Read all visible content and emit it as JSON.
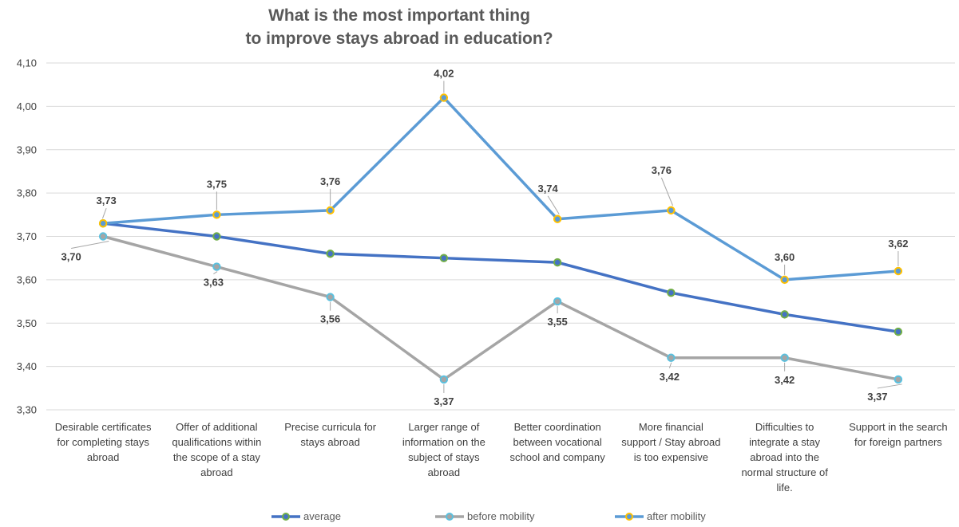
{
  "chart_data": {
    "type": "line",
    "title_lines": [
      "What is the most important thing",
      "to improve stays abroad in education?"
    ],
    "ylim": [
      3.3,
      4.1
    ],
    "yticks": [
      "3,30",
      "3,40",
      "3,50",
      "3,60",
      "3,70",
      "3,80",
      "3,90",
      "4,00",
      "4,10"
    ],
    "ytick_values": [
      3.3,
      3.4,
      3.5,
      3.6,
      3.7,
      3.8,
      3.9,
      4.0,
      4.1
    ],
    "grid": true,
    "legend_position": "bottom",
    "categories": [
      [
        "Desirable certificates",
        "for completing stays",
        "abroad"
      ],
      [
        "Offer of additional",
        "qualifications within",
        "the scope of a stay",
        "abroad"
      ],
      [
        "Precise curricula for",
        "stays abroad"
      ],
      [
        "Larger range of",
        "information on the",
        "subject of stays",
        "abroad"
      ],
      [
        "Better coordination",
        "between vocational",
        "school and company"
      ],
      [
        "More financial",
        "support / Stay abroad",
        "is too expensive"
      ],
      [
        "Difficulties to",
        "integrate a stay",
        "abroad into the",
        "normal structure of",
        "life."
      ],
      [
        "Support in the search",
        "for foreign partners"
      ]
    ],
    "series": [
      {
        "name": "average",
        "color": "#4472c4",
        "marker_color": "#70ad47",
        "values": [
          3.73,
          3.7,
          3.66,
          3.65,
          3.64,
          3.57,
          3.52,
          3.48
        ],
        "labels": null
      },
      {
        "name": "before mobility",
        "color": "#a5a5a5",
        "marker_color": "#5bc0de",
        "values": [
          3.7,
          3.63,
          3.56,
          3.37,
          3.55,
          3.42,
          3.42,
          3.37
        ],
        "labels": [
          "3,70",
          "3,63",
          "3,56",
          "3,37",
          "3,55",
          "3,42",
          "3,42",
          "3,37"
        ]
      },
      {
        "name": "after mobility",
        "color": "#5b9bd5",
        "marker_color": "#ffc000",
        "values": [
          3.73,
          3.75,
          3.76,
          4.02,
          3.74,
          3.76,
          3.6,
          3.62
        ],
        "labels": [
          "3,73",
          "3,75",
          "3,76",
          "4,02",
          "3,74",
          "3,76",
          "3,60",
          "3,62"
        ]
      }
    ]
  }
}
